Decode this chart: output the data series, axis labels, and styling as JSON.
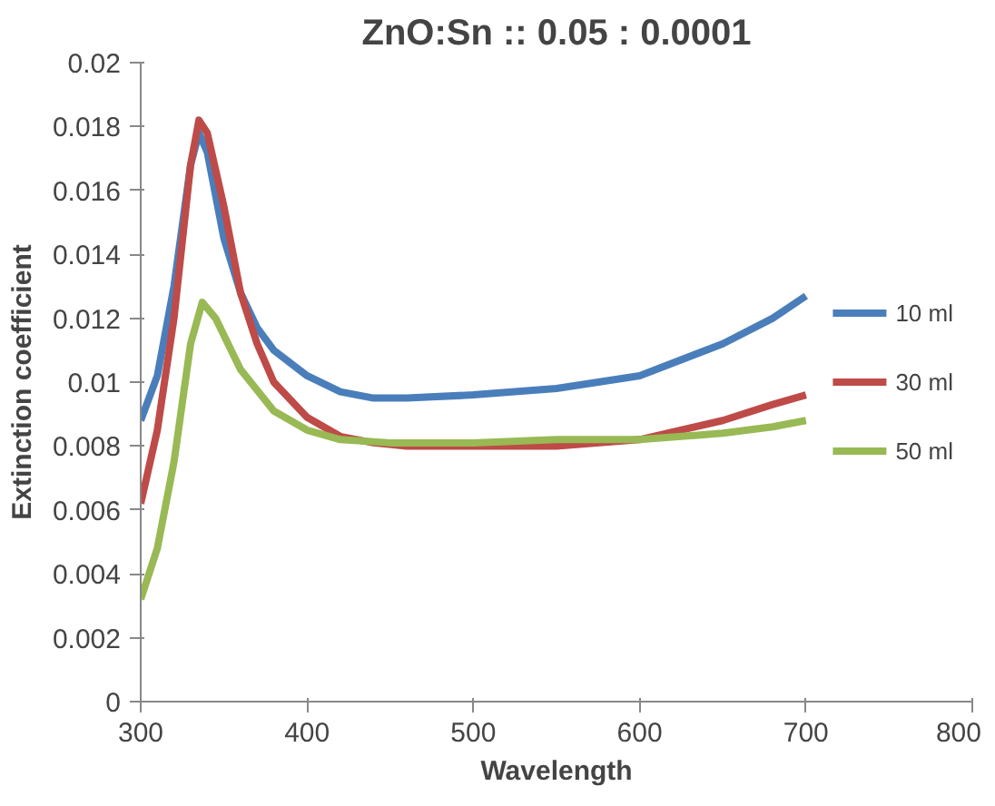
{
  "chart_data": {
    "type": "line",
    "title": "ZnO:Sn :: 0.05 : 0.0001",
    "xlabel": "Wavelength",
    "ylabel": "Extinction coefficient",
    "xlim": [
      300,
      800
    ],
    "xticks": [
      300,
      400,
      500,
      600,
      700,
      800
    ],
    "ylim": [
      0,
      0.02
    ],
    "yticks": [
      0,
      0.002,
      0.004,
      0.006,
      0.008,
      0.01,
      0.012,
      0.014,
      0.016,
      0.018,
      0.02
    ],
    "grid": false,
    "legend": "right",
    "marker": "none",
    "line_style": "solid",
    "series": [
      {
        "name": "10 ml",
        "color": "#4a7ebb",
        "x": [
          300,
          305,
          310,
          320,
          330,
          335,
          340,
          350,
          360,
          370,
          380,
          400,
          420,
          440,
          460,
          500,
          550,
          600,
          650,
          680,
          700
        ],
        "values": [
          0.0088,
          0.0095,
          0.0102,
          0.013,
          0.0168,
          0.0178,
          0.0172,
          0.0145,
          0.0128,
          0.0117,
          0.011,
          0.0102,
          0.0097,
          0.0095,
          0.0095,
          0.0096,
          0.0098,
          0.0102,
          0.0112,
          0.012,
          0.0127
        ]
      },
      {
        "name": "30 ml",
        "color": "#be4b48",
        "x": [
          300,
          310,
          320,
          330,
          335,
          340,
          350,
          360,
          370,
          380,
          400,
          420,
          440,
          460,
          500,
          550,
          600,
          650,
          680,
          700
        ],
        "values": [
          0.0062,
          0.0085,
          0.012,
          0.0168,
          0.0182,
          0.0178,
          0.0155,
          0.0128,
          0.0112,
          0.01,
          0.0089,
          0.0083,
          0.0081,
          0.008,
          0.008,
          0.008,
          0.0082,
          0.0088,
          0.0093,
          0.0096
        ]
      },
      {
        "name": "50 ml",
        "color": "#98b954",
        "x": [
          300,
          310,
          320,
          330,
          337,
          345,
          360,
          380,
          400,
          420,
          450,
          500,
          550,
          600,
          650,
          680,
          700
        ],
        "values": [
          0.0032,
          0.0048,
          0.0075,
          0.0112,
          0.0125,
          0.012,
          0.0104,
          0.0091,
          0.0085,
          0.0082,
          0.0081,
          0.0081,
          0.0082,
          0.0082,
          0.0084,
          0.0086,
          0.0088
        ]
      }
    ]
  }
}
